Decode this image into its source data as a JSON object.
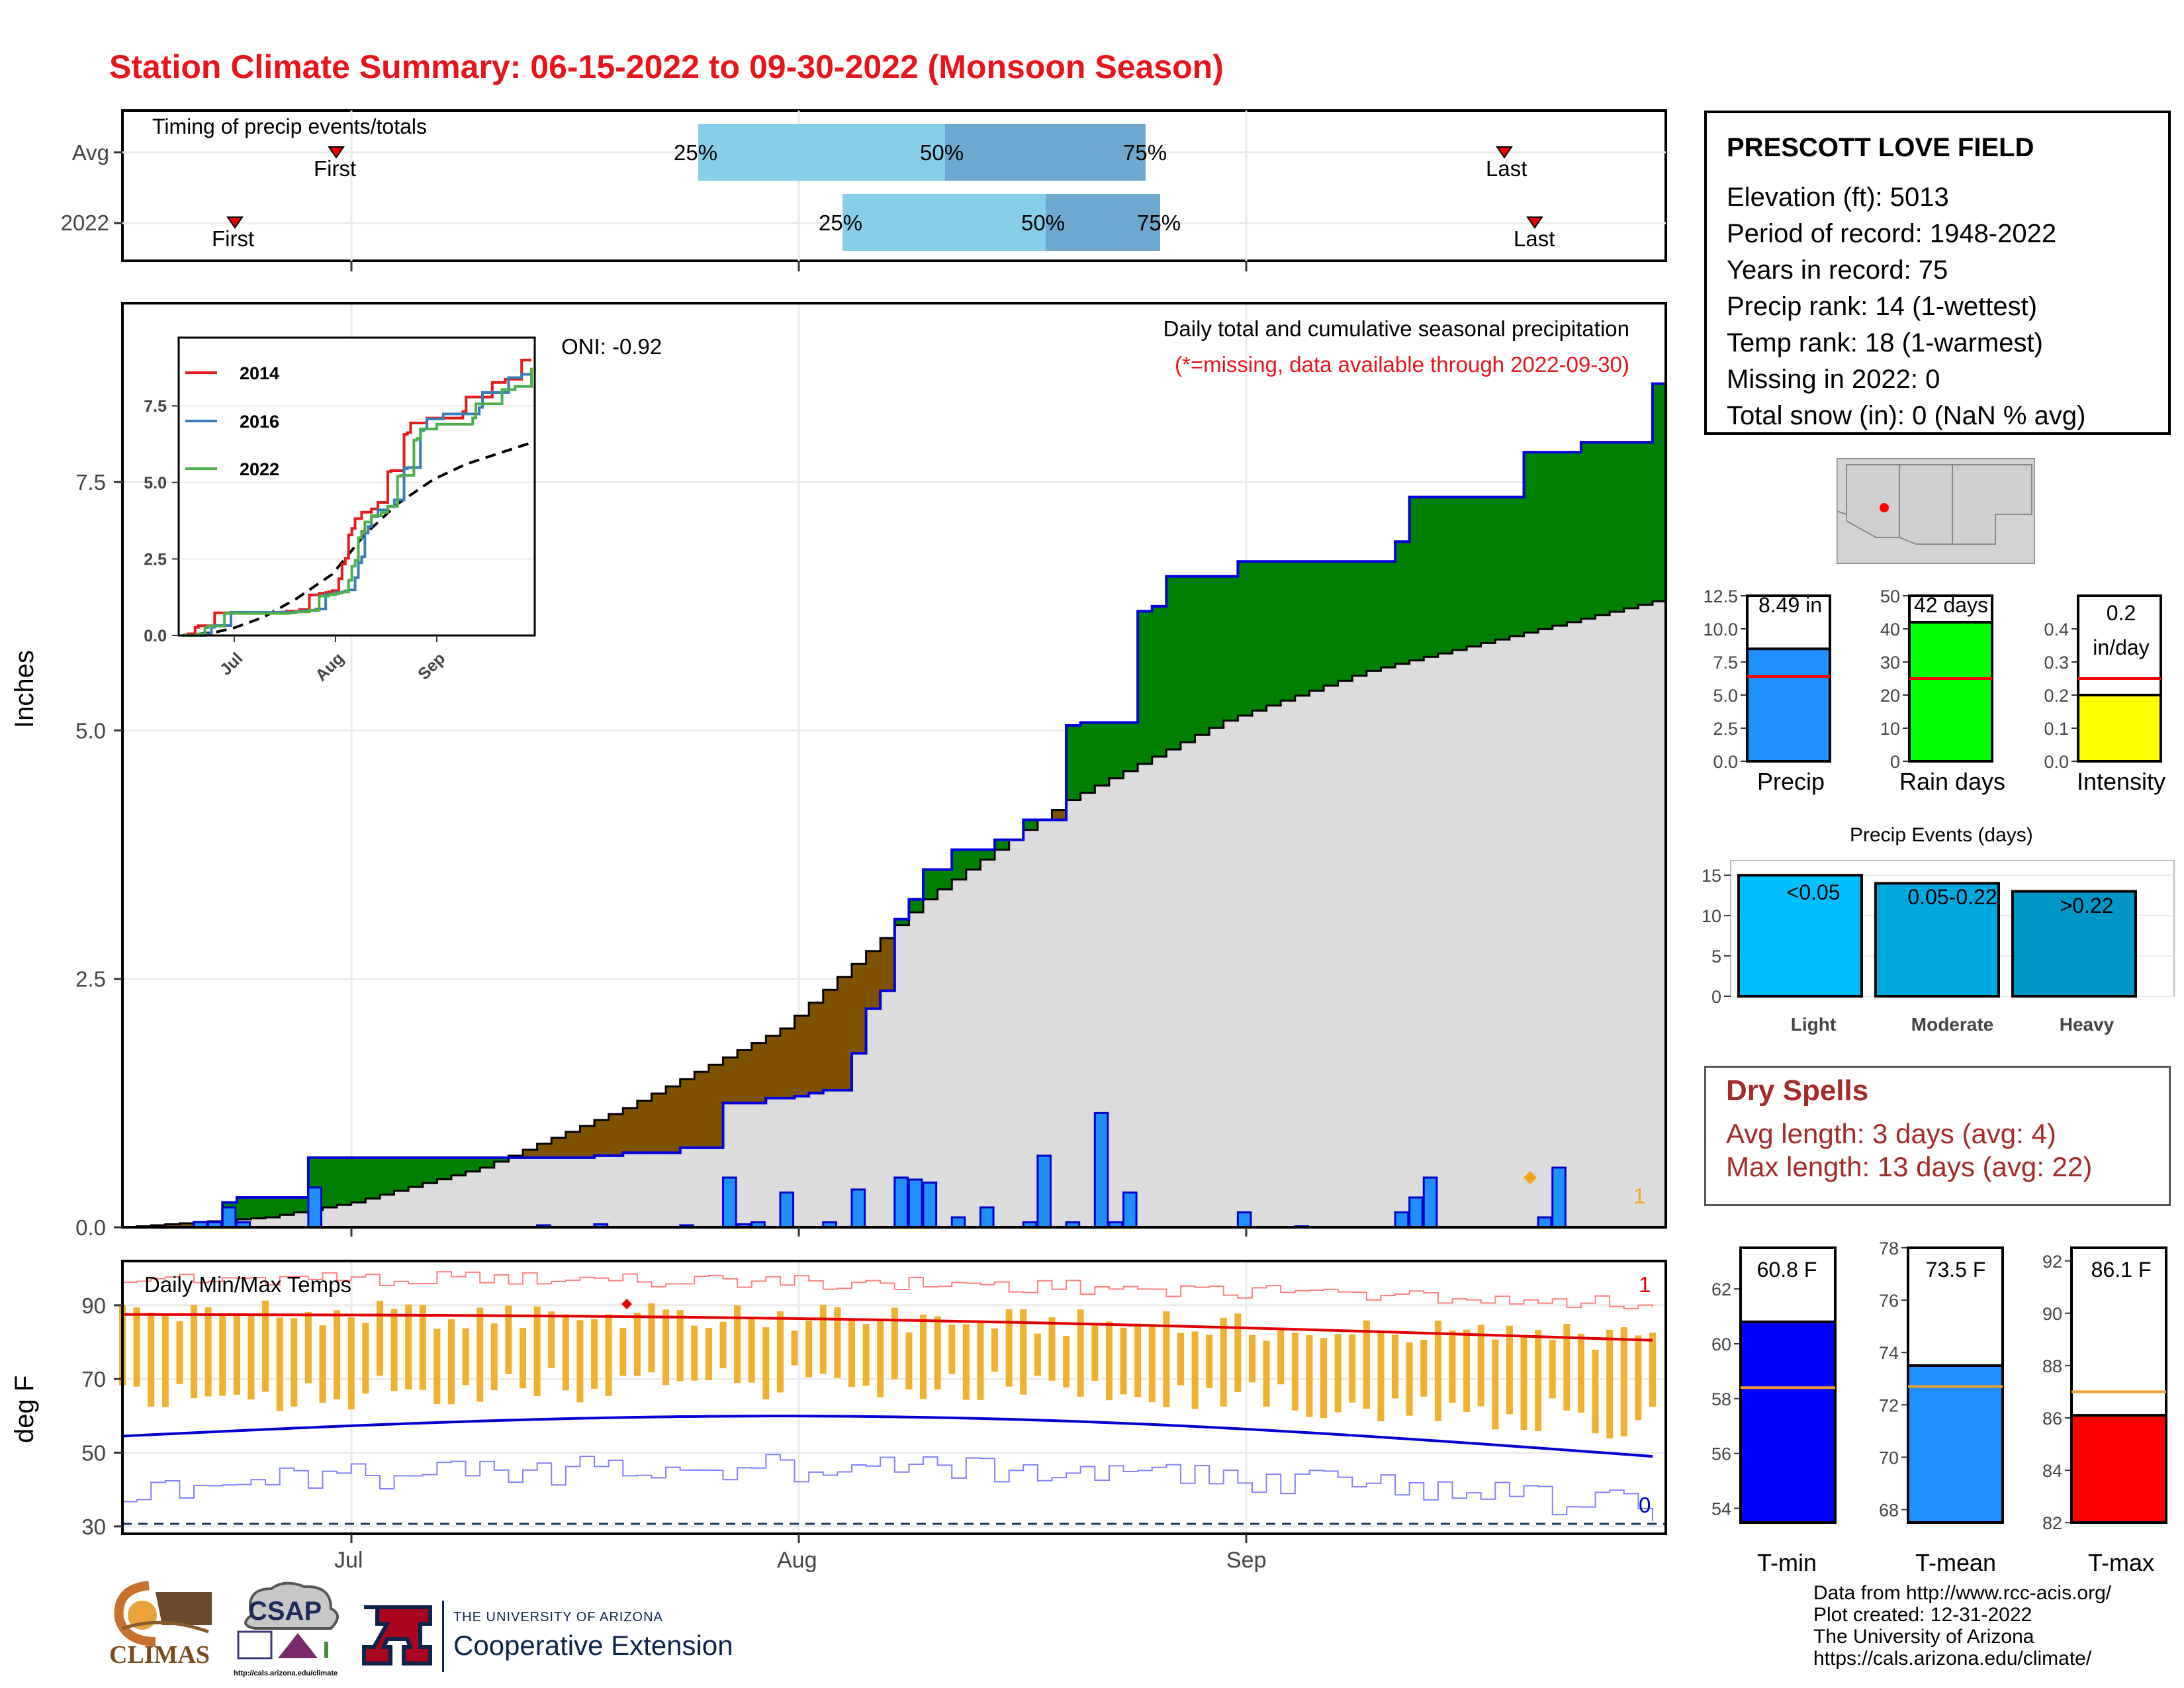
{
  "title": "Station Climate Summary: 06-15-2022 to 09-30-2022 (Monsoon Season)",
  "timing": {
    "label": "Timing of precip events/totals",
    "rows": [
      "Avg",
      "2022"
    ],
    "first_label": "First",
    "last_label": "Last",
    "p25": "25%",
    "p50": "50%",
    "p75": "75%"
  },
  "month_labels": [
    "Jul",
    "Aug",
    "Sep"
  ],
  "main": {
    "ylabel": "Inches",
    "yticks": [
      "0.0",
      "2.5",
      "5.0",
      "7.5"
    ],
    "title": "Daily total and cumulative seasonal precipitation",
    "subtitle": "(*=missing, data available through 2022-09-30)",
    "oni": "ONI: -0.92",
    "corner_count": "1"
  },
  "inset": {
    "legend": [
      "2014",
      "2016",
      "2022"
    ],
    "colors": {
      "2014": "#e41a1c",
      "2016": "#377eb8",
      "2022": "#4daf4a"
    },
    "yticks": [
      "0.0",
      "2.5",
      "5.0",
      "7.5"
    ],
    "xticks": [
      "Jul",
      "Aug",
      "Sep"
    ]
  },
  "temps": {
    "label": "Daily Min/Max Temps",
    "ylabel": "deg F",
    "yticks": [
      "30",
      "50",
      "70",
      "90"
    ],
    "count_high": "1",
    "count_low": "0"
  },
  "station": {
    "name": "PRESCOTT LOVE FIELD",
    "lines": [
      "Elevation (ft): 5013",
      "Period of record: 1948-2022",
      "Years in record: 75",
      "Precip rank: 14 (1-wettest)",
      "Temp rank: 18 (1-warmest)",
      "Missing in 2022: 0",
      "Total snow (in): 0 (NaN % avg)"
    ]
  },
  "small_bars": {
    "precip": {
      "label": "Precip",
      "value_text": "8.49 in",
      "value": 8.49,
      "avg": 6.4,
      "yticks": [
        "0.0",
        "2.5",
        "5.0",
        "7.5",
        "10.0",
        "12.5"
      ],
      "ymax": 12.5,
      "color": "#1e90ff"
    },
    "raindays": {
      "label": "Rain days",
      "value_text": "42 days",
      "value": 42,
      "avg": 25,
      "yticks": [
        "0",
        "10",
        "20",
        "30",
        "40",
        "50"
      ],
      "ymax": 50,
      "color": "#00ff00"
    },
    "intensity": {
      "label": "Intensity",
      "value_text_1": "0.2",
      "value_text_2": "in/day",
      "value": 0.2,
      "avg": 0.25,
      "yticks": [
        "0.0",
        "0.1",
        "0.2",
        "0.3",
        "0.4"
      ],
      "ymax": 0.5,
      "color": "#ffff00"
    }
  },
  "events": {
    "title": "Precip Events (days)",
    "yticks": [
      "0",
      "5",
      "10",
      "15"
    ],
    "ymax": 16,
    "bars": [
      {
        "name": "Light",
        "range": "<0.05",
        "value": 15,
        "color": "#00bfff"
      },
      {
        "name": "Moderate",
        "range": "0.05-0.22",
        "value": 14,
        "color": "#00a8e0"
      },
      {
        "name": "Heavy",
        "range": ">0.22",
        "value": 13,
        "color": "#0096c8"
      }
    ]
  },
  "dry_spells": {
    "title": "Dry Spells",
    "avg": "Avg length: 3 days (avg: 4)",
    "max": "Max length: 13 days (avg: 22)"
  },
  "temp_bars": [
    {
      "label": "T-min",
      "value_text": "60.8 F",
      "value": 60.8,
      "avg": 58.4,
      "ymin": 53,
      "ymax": 63.5,
      "yticks": [
        "54",
        "56",
        "58",
        "60",
        "62"
      ],
      "color": "#0000ff"
    },
    {
      "label": "T-mean",
      "value_text": "73.5 F",
      "value": 73.5,
      "avg": 72.7,
      "ymin": 67,
      "ymax": 78,
      "yticks": [
        "68",
        "70",
        "72",
        "74",
        "76",
        "78"
      ],
      "color": "#1e90ff"
    },
    {
      "label": "T-max",
      "value_text": "86.1 F",
      "value": 86.1,
      "avg": 87.0,
      "ymin": 81.5,
      "ymax": 92.5,
      "yticks": [
        "82",
        "84",
        "86",
        "88",
        "90",
        "92"
      ],
      "color": "#ff0000"
    }
  ],
  "credits": [
    "Data from http://www.rcc-acis.org/",
    "Plot created: 12-31-2022",
    "The University of Arizona",
    "https://cals.arizona.edu/climate/"
  ],
  "logos": {
    "climas": "CLIMAS",
    "csap": "CSAP",
    "csap_url": "http://cals.arizona.edu/climate",
    "ua_line1": "THE UNIVERSITY OF ARIZONA",
    "ua_line2": "Cooperative Extension"
  },
  "chart_data": [
    {
      "type": "area",
      "title": "Daily total and cumulative seasonal precipitation",
      "ylabel": "Inches",
      "ylim": [
        0,
        9.3
      ],
      "x_start": "2022-06-15",
      "x_end": "2022-09-30",
      "cumulative_2022_steps": [
        [
          "06-20",
          0.05
        ],
        [
          "06-22",
          0.25
        ],
        [
          "06-23",
          0.3
        ],
        [
          "06-28",
          0.7
        ],
        [
          "07-18",
          0.72
        ],
        [
          "07-20",
          0.75
        ],
        [
          "07-24",
          0.8
        ],
        [
          "07-27",
          1.25
        ],
        [
          "07-30",
          1.3
        ],
        [
          "08-01",
          1.32
        ],
        [
          "08-02",
          1.35
        ],
        [
          "08-03",
          1.38
        ],
        [
          "08-05",
          1.75
        ],
        [
          "08-06",
          2.2
        ],
        [
          "08-07",
          2.38
        ],
        [
          "08-08",
          3.1
        ],
        [
          "08-09",
          3.3
        ],
        [
          "08-10",
          3.6
        ],
        [
          "08-12",
          3.8
        ],
        [
          "08-13",
          3.8
        ],
        [
          "08-15",
          3.9
        ],
        [
          "08-16",
          3.9
        ],
        [
          "08-17",
          4.1
        ],
        [
          "08-18",
          4.1
        ],
        [
          "08-20",
          5.05
        ],
        [
          "08-21",
          5.08
        ],
        [
          "08-25",
          6.2
        ],
        [
          "08-26",
          6.25
        ],
        [
          "08-27",
          6.55
        ],
        [
          "08-30",
          6.55
        ],
        [
          "08-31",
          6.55
        ],
        [
          "09-01",
          6.7
        ],
        [
          "09-05",
          6.7
        ],
        [
          "09-09",
          6.7
        ],
        [
          "09-12",
          6.9
        ],
        [
          "09-13",
          7.35
        ],
        [
          "09-20",
          7.35
        ],
        [
          "09-21",
          7.8
        ],
        [
          "09-25",
          7.9
        ],
        [
          "09-30",
          8.49
        ]
      ],
      "average_cumulative": [
        [
          "06-15",
          0.0
        ],
        [
          "06-25",
          0.1
        ],
        [
          "07-01",
          0.25
        ],
        [
          "07-10",
          0.6
        ],
        [
          "07-20",
          1.2
        ],
        [
          "07-31",
          2.0
        ],
        [
          "08-10",
          3.3
        ],
        [
          "08-20",
          4.3
        ],
        [
          "08-31",
          5.1
        ],
        [
          "09-10",
          5.6
        ],
        [
          "09-20",
          5.95
        ],
        [
          "09-30",
          6.3
        ]
      ],
      "daily_precip": [
        [
          "06-20",
          0.05
        ],
        [
          "06-21",
          0.05
        ],
        [
          "06-22",
          0.2
        ],
        [
          "06-23",
          0.05
        ],
        [
          "06-28",
          0.4
        ],
        [
          "07-14",
          0.02
        ],
        [
          "07-18",
          0.03
        ],
        [
          "07-24",
          0.02
        ],
        [
          "07-27",
          0.5
        ],
        [
          "07-28",
          0.03
        ],
        [
          "07-29",
          0.05
        ],
        [
          "07-31",
          0.35
        ],
        [
          "08-03",
          0.05
        ],
        [
          "08-05",
          0.38
        ],
        [
          "08-08",
          0.5
        ],
        [
          "08-09",
          0.48
        ],
        [
          "08-10",
          0.45
        ],
        [
          "08-12",
          0.1
        ],
        [
          "08-14",
          0.2
        ],
        [
          "08-17",
          0.05
        ],
        [
          "08-18",
          0.72
        ],
        [
          "08-20",
          0.05
        ],
        [
          "08-22",
          1.15
        ],
        [
          "08-23",
          0.05
        ],
        [
          "08-24",
          0.35
        ],
        [
          "09-01",
          0.15
        ],
        [
          "09-05",
          0.01
        ],
        [
          "09-12",
          0.15
        ],
        [
          "09-13",
          0.3
        ],
        [
          "09-14",
          0.5
        ],
        [
          "09-22",
          0.1
        ],
        [
          "09-23",
          0.6
        ]
      ]
    },
    {
      "type": "line",
      "title": "Daily Min/Max Temps",
      "ylabel": "deg F",
      "ylim": [
        28,
        102
      ],
      "avg_max_start": 87.5,
      "avg_max_end": 80.5,
      "avg_min_start": 54.5,
      "avg_min_end": 49.0,
      "daily_max_range": [
        80,
        95
      ],
      "daily_min_range": [
        45,
        70
      ]
    },
    {
      "type": "line",
      "series": [
        {
          "name": "2014"
        },
        {
          "name": "2016"
        },
        {
          "name": "2022"
        }
      ],
      "ylim": [
        0,
        9
      ]
    }
  ]
}
